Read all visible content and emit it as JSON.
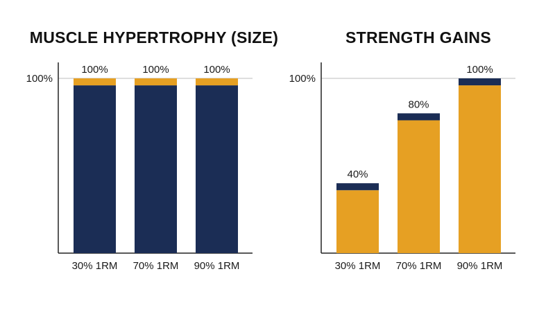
{
  "colors": {
    "navy": "#1b2d55",
    "gold": "#e6a023",
    "axis": "#222222",
    "ref_line": "#bdbdbd"
  },
  "chart_data": [
    {
      "type": "bar",
      "stacked": true,
      "title": "MUSCLE HYPERTROPHY (SIZE)",
      "categories": [
        "30% 1RM",
        "70% 1RM",
        "90% 1RM"
      ],
      "values": [
        100,
        100,
        100
      ],
      "value_labels": [
        "100%",
        "100%",
        "100%"
      ],
      "y_tick_label": "100%",
      "ylim": [
        0,
        100
      ],
      "grid": false,
      "series": [
        {
          "values": [
            96,
            96,
            96
          ],
          "color": "#1b2d55"
        },
        {
          "values": [
            4,
            4,
            4
          ],
          "color": "#e6a023"
        }
      ]
    },
    {
      "type": "bar",
      "stacked": true,
      "title": "STRENGTH GAINS",
      "categories": [
        "30% 1RM",
        "70% 1RM",
        "90% 1RM"
      ],
      "values": [
        40,
        80,
        100
      ],
      "value_labels": [
        "40%",
        "80%",
        "100%"
      ],
      "y_tick_label": "100%",
      "ylim": [
        0,
        100
      ],
      "grid": false,
      "series": [
        {
          "values": [
            36,
            76,
            96
          ],
          "color": "#e6a023"
        },
        {
          "values": [
            4,
            4,
            4
          ],
          "color": "#1b2d55"
        }
      ]
    }
  ]
}
